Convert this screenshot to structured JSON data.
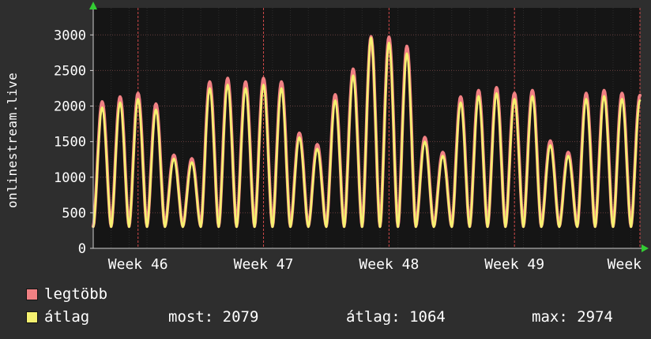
{
  "site_label": "onlinestream.live",
  "chart_data": {
    "type": "line",
    "title": "",
    "ylabel": "onlinestream.live",
    "xlabel": "",
    "ylim": [
      0,
      3380
    ],
    "yticks": [
      0,
      500,
      1000,
      1500,
      2000,
      2500,
      3000
    ],
    "x_axis": {
      "labels": [
        "Week 46",
        "Week 47",
        "Week 48",
        "Week 49",
        "Week"
      ],
      "label_positions_days": [
        2.5,
        9.5,
        16.5,
        23.5,
        30.5
      ],
      "days_visible": 30.5
    },
    "grid": {
      "week_line_color": "#e05555",
      "minor_grid": "dotted"
    },
    "series": [
      {
        "name": "legtöbb",
        "color": "#f08083",
        "trough": 310,
        "daily_peaks": [
          2060,
          2130,
          2180,
          2030,
          1310,
          1260,
          2340,
          2390,
          2340,
          2390,
          2340,
          1620,
          1460,
          2160,
          2520,
          2974,
          2970,
          2840,
          1560,
          1350,
          2130,
          2220,
          2260,
          2180,
          2220,
          1510,
          1350,
          2180,
          2220,
          2180,
          2150
        ]
      },
      {
        "name": "átlag",
        "color": "#f5f170",
        "trough": 300,
        "daily_peaks": [
          1980,
          2050,
          2100,
          1950,
          1260,
          1210,
          2250,
          2300,
          2250,
          2300,
          2250,
          1560,
          1400,
          2080,
          2430,
          2960,
          2890,
          2740,
          1500,
          1300,
          2050,
          2140,
          2180,
          2100,
          2140,
          1450,
          1300,
          2100,
          2140,
          2100,
          2079
        ]
      }
    ],
    "stats": [
      "most: 2079",
      "átlag: 1064",
      "max: 2974"
    ],
    "legend_position": "bottom-left",
    "axis_arrow_color": "#33cc33"
  }
}
